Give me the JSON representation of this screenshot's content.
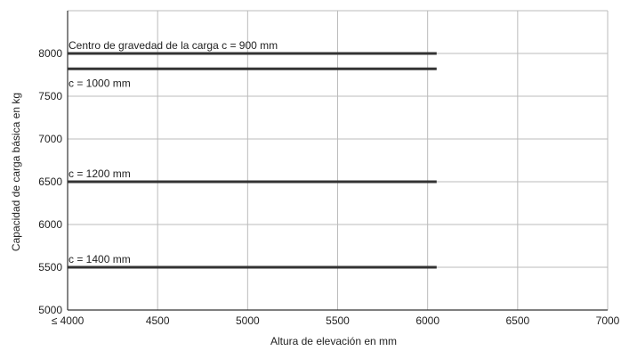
{
  "chart_data": {
    "type": "line",
    "title": "",
    "xlabel": "Altura de elevación en mm",
    "ylabel": "Capacidad de carga básica en kg",
    "xlim": [
      4000,
      7000
    ],
    "ylim": [
      5000,
      8500
    ],
    "grid": true,
    "x_ticks": [
      {
        "value": 4000,
        "label": "≤ 4000"
      },
      {
        "value": 4500,
        "label": "4500"
      },
      {
        "value": 5000,
        "label": "5000"
      },
      {
        "value": 5500,
        "label": "5500"
      },
      {
        "value": 6000,
        "label": "6000"
      },
      {
        "value": 6500,
        "label": "6500"
      },
      {
        "value": 7000,
        "label": "7000"
      }
    ],
    "y_ticks": [
      {
        "value": 5000,
        "label": "5000"
      },
      {
        "value": 5500,
        "label": "5500"
      },
      {
        "value": 6000,
        "label": "6000"
      },
      {
        "value": 6500,
        "label": "6500"
      },
      {
        "value": 7000,
        "label": "7000"
      },
      {
        "value": 7500,
        "label": "7500"
      },
      {
        "value": 8000,
        "label": "8000"
      }
    ],
    "series": [
      {
        "name": "Centro de gravedad de la carga c = 900 mm",
        "x": [
          4000,
          6050
        ],
        "y": [
          8000,
          8000
        ]
      },
      {
        "name": "c = 1000 mm",
        "x": [
          4000,
          6050
        ],
        "y": [
          7820,
          7820
        ]
      },
      {
        "name": "c = 1200 mm",
        "x": [
          4000,
          6050
        ],
        "y": [
          6500,
          6500
        ]
      },
      {
        "name": "c = 1400 mm",
        "x": [
          4000,
          6050
        ],
        "y": [
          5500,
          5500
        ]
      }
    ],
    "colors": {
      "line": "#333333",
      "grid": "#bbbbbb",
      "axis": "#333333",
      "text": "#222222"
    }
  }
}
